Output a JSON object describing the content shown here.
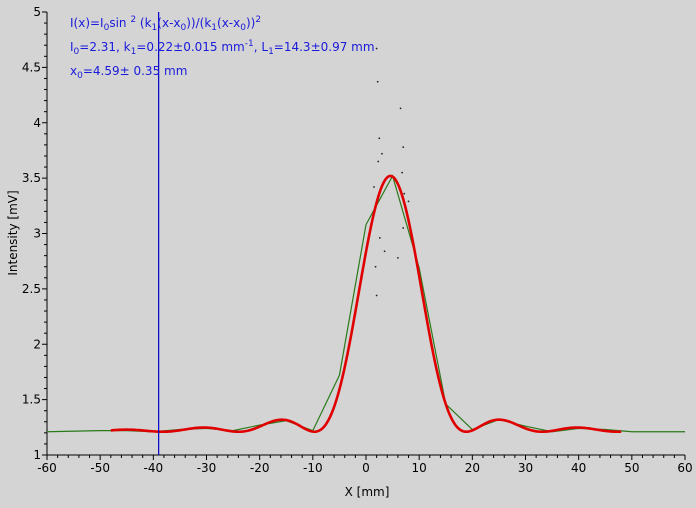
{
  "background_color": "#d4d4d4",
  "fit_color": "#e00000",
  "raw_color": "#2a7a1a",
  "scatter_color": "#222222",
  "cursor_color": "#0000cc",
  "text_color": "#1a1adb",
  "annotation": {
    "line1": {
      "a": "I(x)=I",
      "a_sub": "0",
      "b": "sin ",
      "b_sup": "2",
      "c": " (k",
      "c_sub": "1",
      "d": "(x-x",
      "d_sub": "0",
      "e": "))/(k",
      "e_sub": "1",
      "f": "(x-x",
      "f_sub": "0",
      "g": "))",
      "g_sup": "2"
    },
    "line2": {
      "a": "I",
      "a_sub": "0",
      "b": "=2.31,  k",
      "b_sub": "1",
      "c": "=0.22±0.015 mm",
      "c_sup": "-1",
      "d": ",   L",
      "d_sub": "1",
      "e": "=14.3±0.97 mm"
    },
    "line3": {
      "a": "x",
      "a_sub": "0",
      "b": "=4.59±  0.35 mm"
    }
  },
  "cursor_x": -39,
  "chart_data": {
    "type": "scatter",
    "title": "",
    "xlabel": "X [mm]",
    "ylabel": "Intensity [mV]",
    "xlim": [
      -60,
      60
    ],
    "ylim": [
      1,
      5
    ],
    "xticks": [
      "-60",
      "-50",
      "-40",
      "-30",
      "-20",
      "-10",
      "0",
      "10",
      "20",
      "30",
      "40",
      "50",
      "60"
    ],
    "yticks": [
      "1",
      "1.5",
      "2",
      "2.5",
      "3",
      "3.5",
      "4",
      "4.5",
      "5"
    ],
    "grid": false,
    "legend": "none",
    "fit_model": {
      "I0": 2.31,
      "k1": 0.22,
      "x0": 4.59,
      "baseline": 1.21
    },
    "series": [
      {
        "kind": "line",
        "x": [
          -60,
          -50,
          -45,
          -40,
          -35,
          -30,
          -25,
          -20,
          -15,
          -10,
          -5,
          0,
          5,
          10,
          15,
          20,
          25,
          30,
          35,
          40,
          45,
          50,
          55,
          60
        ],
        "y": [
          1.21,
          1.22,
          1.22,
          1.21,
          1.23,
          1.24,
          1.22,
          1.27,
          1.31,
          1.22,
          1.72,
          3.08,
          3.52,
          2.69,
          1.46,
          1.23,
          1.32,
          1.26,
          1.21,
          1.24,
          1.23,
          1.21,
          1.21,
          1.21
        ]
      },
      {
        "kind": "scatter",
        "x": [
          2,
          2.2,
          2.5,
          3,
          2.3,
          6.5,
          7,
          6.8,
          1.5,
          7.2,
          2.6,
          3.5,
          6,
          1.8,
          2,
          7,
          8
        ],
        "y": [
          4.67,
          4.37,
          3.86,
          3.72,
          3.65,
          4.13,
          3.78,
          3.55,
          3.42,
          3.36,
          2.96,
          2.84,
          2.78,
          2.7,
          2.44,
          3.05,
          3.29
        ]
      },
      {
        "kind": "fit",
        "x_range": [
          -48,
          48
        ]
      }
    ]
  }
}
